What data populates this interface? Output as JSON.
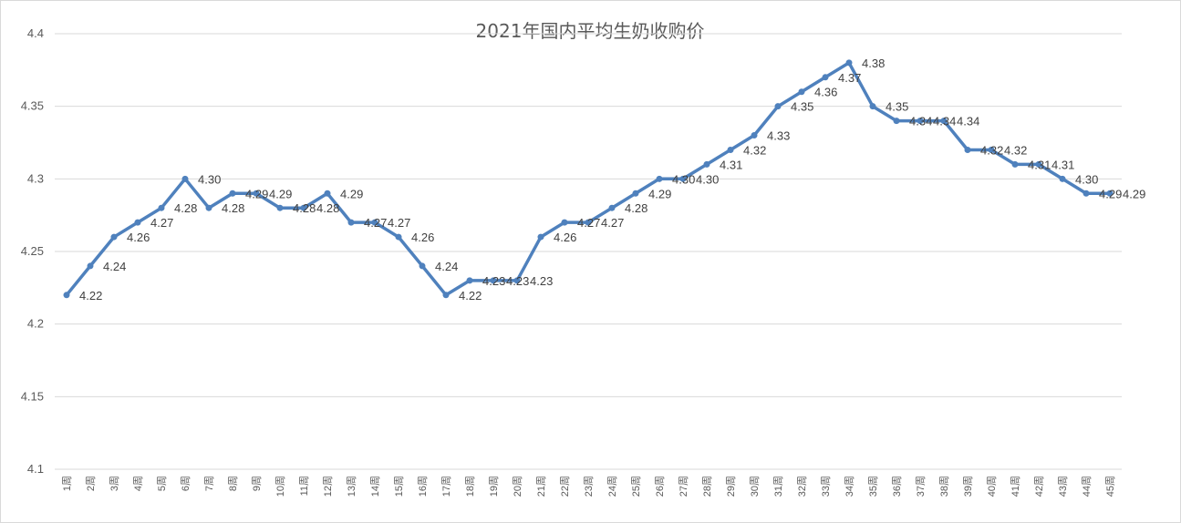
{
  "chart_data": {
    "type": "line",
    "title": "2021年国内平均生奶收购价",
    "xlabel": "",
    "ylabel": "",
    "ylim": [
      4.1,
      4.4
    ],
    "yticks": [
      "4.1",
      "4.15",
      "4.2",
      "4.25",
      "4.3",
      "4.35",
      "4.4"
    ],
    "grid": true,
    "legend": "none",
    "colors": {
      "line": "#4f81bd",
      "grid": "#d9d9d9",
      "text": "#595959"
    },
    "categories": [
      "1周",
      "2周",
      "3周",
      "4周",
      "5周",
      "6周",
      "7周",
      "8周",
      "9周",
      "10周",
      "11周",
      "12周",
      "13周",
      "14周",
      "15周",
      "16周",
      "17周",
      "18周",
      "19周",
      "20周",
      "21周",
      "22周",
      "23周",
      "24周",
      "25周",
      "26周",
      "27周",
      "28周",
      "29周",
      "30周",
      "31周",
      "32周",
      "33周",
      "34周",
      "35周",
      "36周",
      "37周",
      "38周",
      "39周",
      "40周",
      "41周",
      "42周",
      "43周",
      "44周",
      "45周"
    ],
    "values": [
      4.22,
      4.24,
      4.26,
      4.27,
      4.28,
      4.3,
      4.28,
      4.29,
      4.29,
      4.28,
      4.28,
      4.29,
      4.27,
      4.27,
      4.26,
      4.24,
      4.22,
      4.23,
      4.23,
      4.23,
      4.26,
      4.27,
      4.27,
      4.28,
      4.29,
      4.3,
      4.3,
      4.31,
      4.32,
      4.33,
      4.35,
      4.36,
      4.37,
      4.38,
      4.35,
      4.34,
      4.34,
      4.34,
      4.32,
      4.32,
      4.31,
      4.31,
      4.3,
      4.29,
      4.29
    ],
    "data_labels": [
      "4.22",
      "4.24",
      "4.26",
      "4.27",
      "4.28",
      "4.30",
      "4.28",
      "4.29",
      "4.29",
      "4.28",
      "4.28",
      "4.29",
      "4.27",
      "4.27",
      "4.26",
      "4.24",
      "4.22",
      "4.23",
      "4.23",
      "4.23",
      "4.26",
      "4.27",
      "4.27",
      "4.28",
      "4.29",
      "4.30",
      "4.30",
      "4.31",
      "4.32",
      "4.33",
      "4.35",
      "4.36",
      "4.37",
      "4.38",
      "4.35",
      "4.34",
      "4.34",
      "4.34",
      "4.32",
      "4.32",
      "4.31",
      "4.31",
      "4.30",
      "4.29",
      "4.29"
    ]
  }
}
